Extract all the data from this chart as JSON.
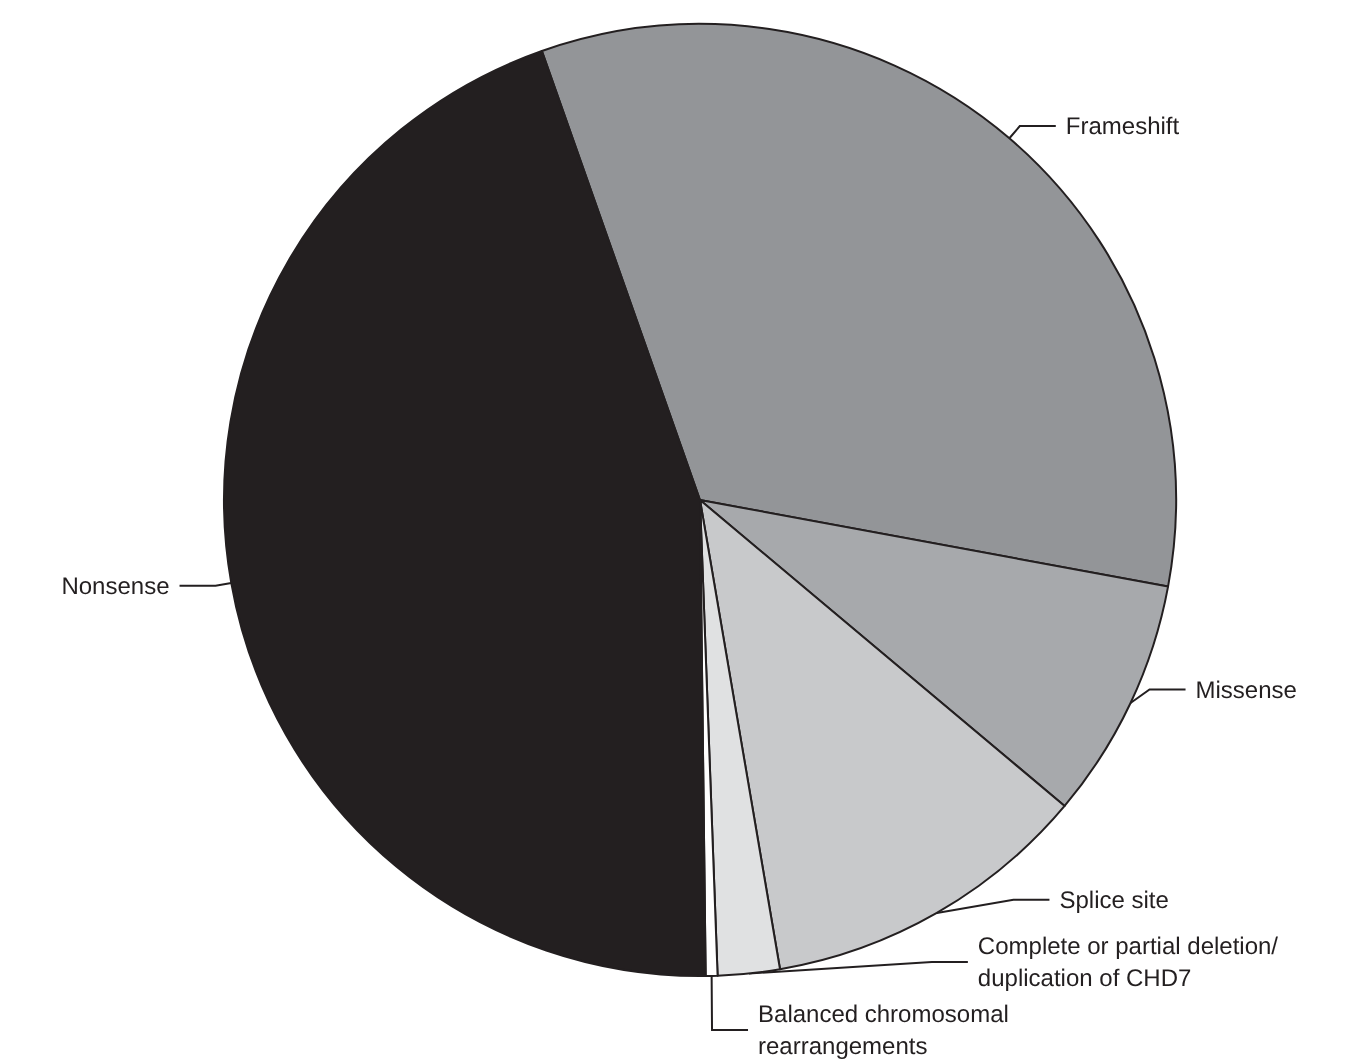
{
  "chart_data": {
    "type": "pie",
    "categories": [
      "Frameshift",
      "Missense",
      "Splice site",
      "Complete or partial deletion/duplication of CHD7",
      "Balanced chromosomal rearrangements",
      "Nonsense"
    ],
    "values": [
      33.3,
      8.2,
      11.2,
      2.1,
      0.4,
      44.8
    ],
    "colors": [
      "#939598",
      "#a7a9ac",
      "#c8c9cb",
      "#e0e1e2",
      "#ffffff",
      "#231f20"
    ],
    "legend": false
  }
}
